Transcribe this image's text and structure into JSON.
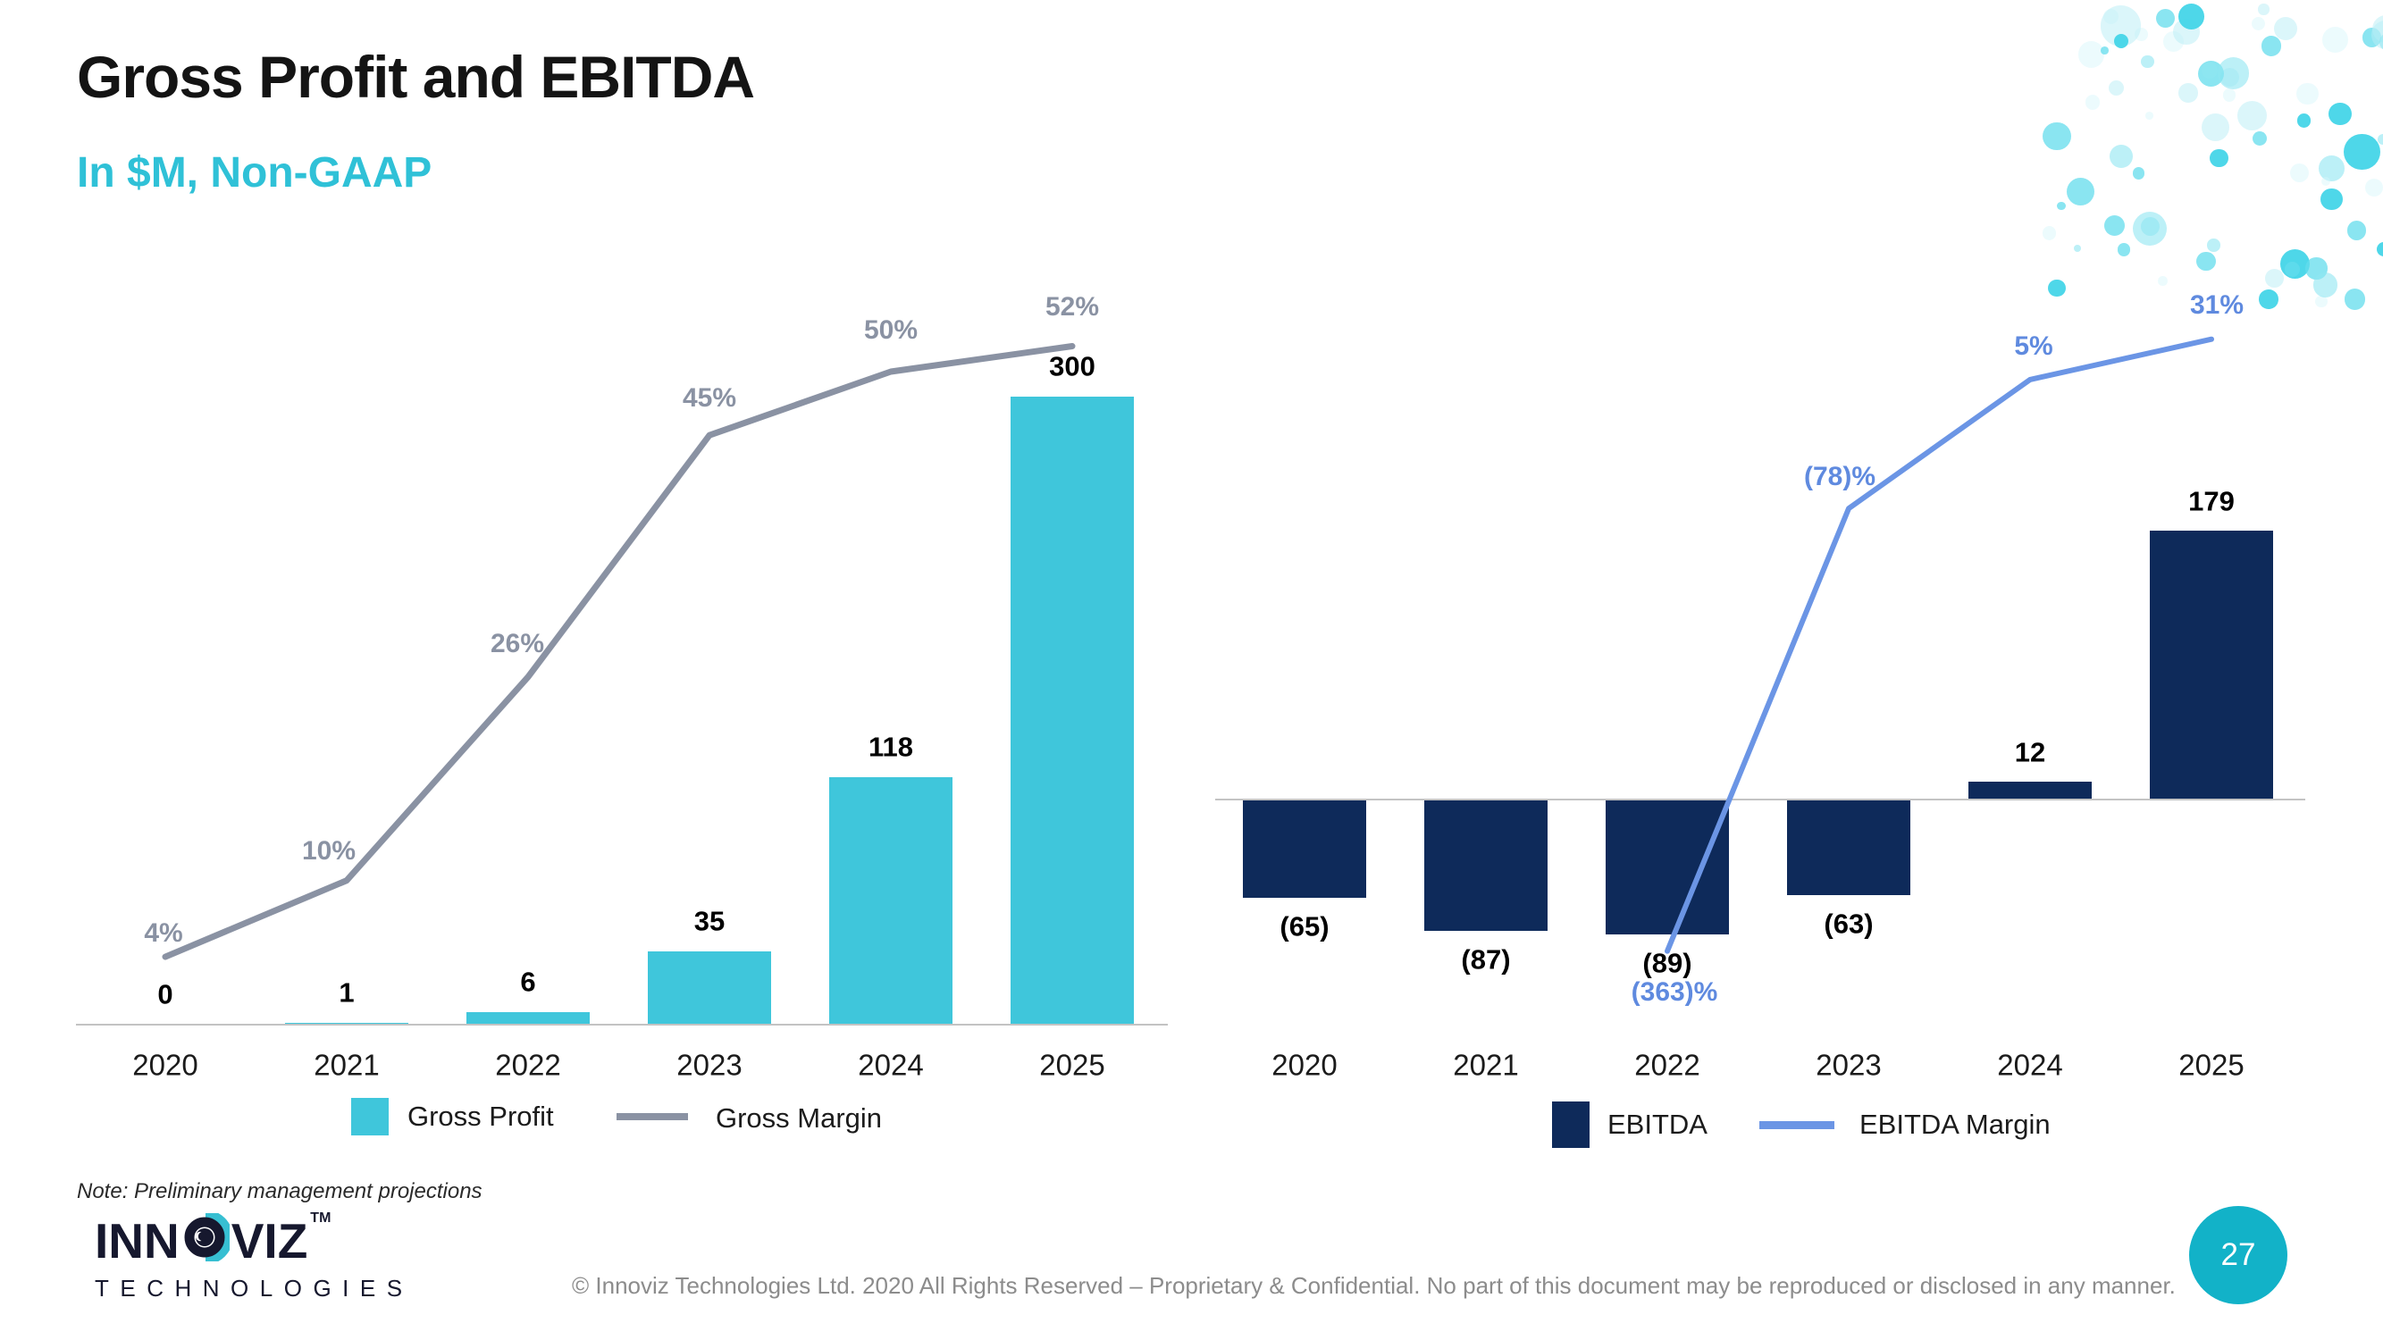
{
  "slide": {
    "title": "Gross Profit and EBITDA",
    "subtitle": "In $M, Non-GAAP",
    "note": "Note: Preliminary management projections",
    "footer": "© Innoviz Technologies Ltd. 2020 All Rights Reserved – Proprietary & Confidential. No part of this document may be reproduced or disclosed in any manner.",
    "page_number": "27"
  },
  "logo": {
    "brand": "INNOVIZ",
    "tm": "TM",
    "subbrand": "TECHNOLOGIES"
  },
  "colors": {
    "title": "#141414",
    "subtitle_teal": "#2fc1d7",
    "gross_profit_bar": "#3fc6db",
    "gross_margin_line": "#8a92a3",
    "value_label": "#000000",
    "ebitda_bar": "#0e2a5a",
    "ebitda_margin_line": "#6b95e5",
    "ebitda_margin_label": "#5f8adf",
    "axis_line": "#c3c3c3",
    "footer_gray": "#8c8c8c",
    "badge_teal": "#12b2c8",
    "dots_teal": "#45d5e8"
  },
  "chart_data": [
    {
      "type": "bar",
      "position": "left",
      "title": "Gross Profit and Gross Margin",
      "categories": [
        "2020",
        "2021",
        "2022",
        "2023",
        "2024",
        "2025"
      ],
      "series": [
        {
          "name": "Gross Profit",
          "type": "bar",
          "unit": "$M",
          "values": [
            0,
            1,
            6,
            35,
            118,
            300
          ],
          "labels": [
            "0",
            "1",
            "6",
            "35",
            "118",
            "300"
          ]
        },
        {
          "name": "Gross Margin",
          "type": "line",
          "unit": "percent",
          "values": [
            4,
            10,
            26,
            45,
            50,
            52
          ],
          "labels": [
            "4%",
            "10%",
            "26%",
            "45%",
            "50%",
            "52%"
          ]
        }
      ],
      "ylim_bars": [
        0,
        300
      ],
      "grid": false,
      "legend_position": "bottom"
    },
    {
      "type": "bar",
      "position": "right",
      "title": "EBITDA and EBITDA Margin",
      "categories": [
        "2020",
        "2021",
        "2022",
        "2023",
        "2024",
        "2025"
      ],
      "series": [
        {
          "name": "EBITDA",
          "type": "bar",
          "unit": "$M",
          "values": [
            -65,
            -87,
            -89,
            -63,
            12,
            179
          ],
          "labels": [
            "(65)",
            "(87)",
            "(89)",
            "(63)",
            "12",
            "179"
          ]
        },
        {
          "name": "EBITDA Margin",
          "type": "line",
          "unit": "percent",
          "values": [
            null,
            null,
            -363,
            -78,
            5,
            31
          ],
          "labels": [
            null,
            null,
            "(363)%",
            "(78)%",
            "5%",
            "31%"
          ]
        }
      ],
      "ylim_bars": [
        -89,
        179
      ],
      "grid": false,
      "legend_position": "bottom"
    }
  ]
}
